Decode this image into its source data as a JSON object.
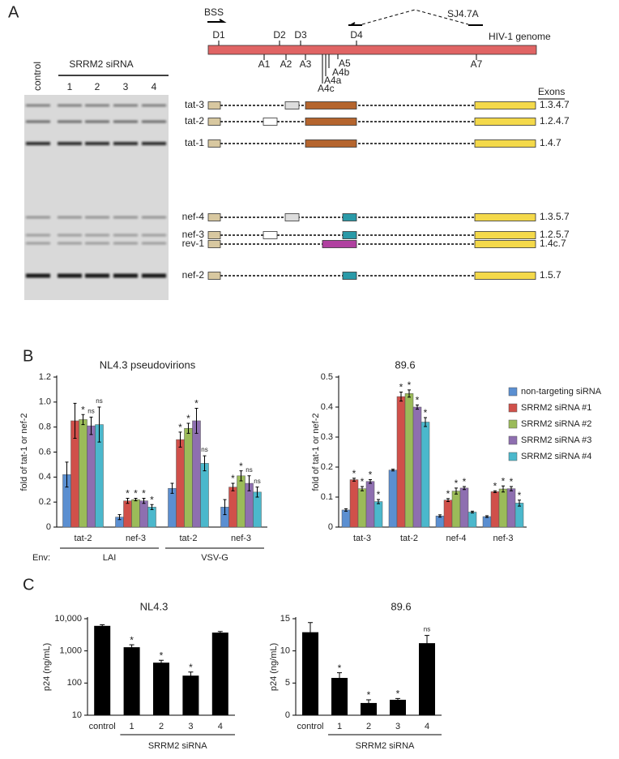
{
  "panel_letters": [
    "A",
    "B",
    "C"
  ],
  "panel_a": {
    "gel": {
      "control_label": "control",
      "sirna_label": "SRRM2 siRNA",
      "lanes": [
        "1",
        "2",
        "3",
        "4"
      ]
    },
    "genome": {
      "primer_fwd": "BSS",
      "primer_rev": "SJ4.7A",
      "label": "HIV-1 genome",
      "donors": [
        "D1",
        "D2",
        "D3",
        "D4"
      ],
      "acceptors": [
        "A1",
        "A2",
        "A3",
        "A4c",
        "A4a",
        "A4b",
        "A5",
        "A7"
      ]
    },
    "transcripts": {
      "header": "Exons",
      "rows": [
        {
          "name": "tat-3",
          "exons": "1.3.4.7"
        },
        {
          "name": "tat-2",
          "exons": "1.2.4.7"
        },
        {
          "name": "tat-1",
          "exons": "1.4.7"
        },
        {
          "name": "nef-4",
          "exons": "1.3.5.7"
        },
        {
          "name": "nef-3",
          "exons": "1.2.5.7"
        },
        {
          "name": "rev-1",
          "exons": "1.4c.7"
        },
        {
          "name": "nef-2",
          "exons": "1.5.7"
        }
      ]
    }
  },
  "chart_data": [
    {
      "type": "bar",
      "title": "NL4.3 pseudovirions",
      "y_label": "fold of tat-1 or nef-2",
      "categories": [
        "tat-2",
        "nef-3",
        "tat-2",
        "nef-3"
      ],
      "x_group_title": "Env:",
      "x_groups": [
        "LAI",
        "VSV-G"
      ],
      "ylim": [
        0,
        1.2
      ],
      "yticks": [
        0,
        0.2,
        0.4,
        0.6,
        0.8,
        {
          "value": 1,
          "label": "1.0"
        },
        1.2
      ],
      "series": [
        {
          "color": "#5b8fd1",
          "values": [
            0.42,
            0.08,
            0.31,
            0.16
          ],
          "errors": [
            0.1,
            0.02,
            0.04,
            0.06
          ],
          "annotations": [
            null,
            null,
            null,
            null
          ]
        },
        {
          "color": "#d0504a",
          "values": [
            0.85,
            0.21,
            0.7,
            0.32
          ],
          "errors": [
            0.14,
            0.02,
            0.06,
            0.03
          ],
          "annotations": [
            null,
            "*",
            "*",
            "*"
          ]
        },
        {
          "color": "#9bbb59",
          "values": [
            0.86,
            0.22,
            0.79,
            0.41
          ],
          "errors": [
            0.04,
            0.01,
            0.04,
            0.04
          ],
          "annotations": [
            "*",
            "*",
            "*",
            "*"
          ]
        },
        {
          "color": "#8e6fb0",
          "values": [
            0.81,
            0.21,
            0.85,
            0.35
          ],
          "errors": [
            0.07,
            0.02,
            0.1,
            0.06
          ],
          "annotations": [
            "ns",
            "*",
            "*",
            "ns"
          ]
        },
        {
          "color": "#4bb8cc",
          "values": [
            0.82,
            0.16,
            0.51,
            0.28
          ],
          "errors": [
            0.14,
            0.02,
            0.06,
            0.04
          ],
          "annotations": [
            "ns",
            "*",
            "ns",
            "ns"
          ]
        }
      ]
    },
    {
      "type": "bar",
      "title": "89.6",
      "y_label": "fold of tat-1 or nef-2",
      "categories": [
        "tat-3",
        "tat-2",
        "nef-4",
        "nef-3"
      ],
      "ylim": [
        0,
        0.5
      ],
      "yticks": [
        0,
        0.1,
        0.2,
        0.3,
        0.4,
        0.5
      ],
      "legend": "upper right",
      "series": [
        {
          "name": "non-targeting siRNA",
          "color": "#5b8fd1",
          "values": [
            0.057,
            0.19,
            0.037,
            0.035
          ],
          "errors": [
            0.004,
            0.003,
            0.004,
            0.003
          ],
          "annotations": [
            null,
            null,
            null,
            null
          ]
        },
        {
          "name": "SRRM2 siRNA #1",
          "color": "#d0504a",
          "values": [
            0.158,
            0.435,
            0.09,
            0.118
          ],
          "errors": [
            0.005,
            0.015,
            0.005,
            0.003
          ],
          "annotations": [
            "*",
            "*",
            "*",
            "*"
          ]
        },
        {
          "name": "SRRM2 siRNA #2",
          "color": "#9bbb59",
          "values": [
            0.128,
            0.445,
            0.12,
            0.127
          ],
          "errors": [
            0.007,
            0.012,
            0.01,
            0.01
          ],
          "annotations": [
            "*",
            "*",
            "*",
            "*"
          ]
        },
        {
          "name": "SRRM2 siRNA #3",
          "color": "#8e6fb0",
          "values": [
            0.152,
            0.4,
            0.13,
            0.128
          ],
          "errors": [
            0.006,
            0.007,
            0.005,
            0.007
          ],
          "annotations": [
            "*",
            "*",
            "*",
            "*"
          ]
        },
        {
          "name": "SRRM2 siRNA #4",
          "color": "#4bb8cc",
          "values": [
            0.085,
            0.35,
            0.05,
            0.08
          ],
          "errors": [
            0.007,
            0.015,
            0.003,
            0.01
          ],
          "annotations": [
            "*",
            "*",
            null,
            "*"
          ]
        }
      ]
    },
    {
      "type": "bar",
      "title": "NL4.3",
      "y_label": "p24 (ng/mL)",
      "log_scale": true,
      "categories": [
        "control",
        "1",
        "2",
        "3",
        "4"
      ],
      "x_group_label": "SRRM2 siRNA",
      "ylim": [
        10,
        10000
      ],
      "yticks": [
        10,
        100,
        {
          "value": 1000,
          "label": "1,000"
        },
        {
          "value": 10000,
          "label": "10,000"
        }
      ],
      "color": "#000000",
      "values": [
        6000,
        1300,
        430,
        170,
        3700
      ],
      "errors": [
        500,
        250,
        80,
        50,
        300
      ],
      "annotations": [
        null,
        "*",
        "*",
        "*",
        null
      ]
    },
    {
      "type": "bar",
      "title": "89.6",
      "y_label": "p24 (ng/mL)",
      "categories": [
        "control",
        "1",
        "2",
        "3",
        "4"
      ],
      "x_group_label": "SRRM2 siRNA",
      "ylim": [
        0,
        15
      ],
      "yticks": [
        0,
        5,
        10,
        15
      ],
      "color": "#000000",
      "values": [
        12.9,
        5.8,
        1.9,
        2.4,
        11.2
      ],
      "errors": [
        1.5,
        0.8,
        0.5,
        0.2,
        1.2
      ],
      "annotations": [
        null,
        "*",
        "*",
        "*",
        "ns"
      ]
    }
  ]
}
